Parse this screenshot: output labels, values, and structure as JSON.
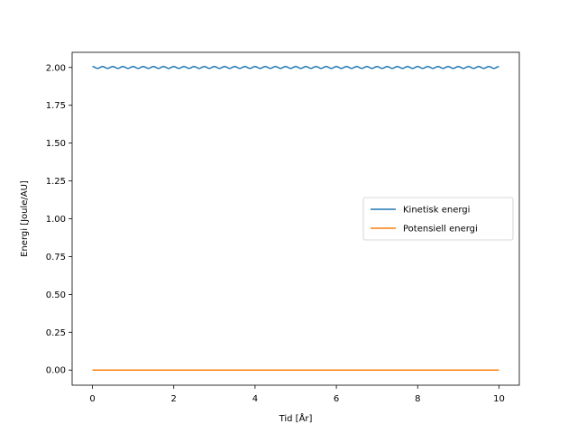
{
  "chart_data": {
    "type": "line",
    "title": "",
    "xlabel": "Tid [År]",
    "ylabel": "Energi [Joule/AU]",
    "xlim": [
      -0.5,
      10.5
    ],
    "ylim": [
      -0.1,
      2.1
    ],
    "xticks": [
      0,
      2,
      4,
      6,
      8,
      10
    ],
    "xtick_labels": [
      "0",
      "2",
      "4",
      "6",
      "8",
      "10"
    ],
    "yticks": [
      0.0,
      0.25,
      0.5,
      0.75,
      1.0,
      1.25,
      1.5,
      1.75,
      2.0
    ],
    "ytick_labels": [
      "0.00",
      "0.25",
      "0.50",
      "0.75",
      "1.00",
      "1.25",
      "1.50",
      "1.75",
      "2.00"
    ],
    "grid": false,
    "legend_position": "center-right",
    "series": [
      {
        "name": "Kinetisk energi",
        "color": "#1f77b4",
        "x": [
          0,
          10
        ],
        "y": [
          2.0,
          2.0
        ],
        "oscillation": {
          "amplitude": 0.006,
          "periods": 40
        }
      },
      {
        "name": "Potensiell energi",
        "color": "#ff7f0e",
        "x": [
          0,
          10
        ],
        "y": [
          0.0,
          0.0
        ]
      }
    ]
  }
}
